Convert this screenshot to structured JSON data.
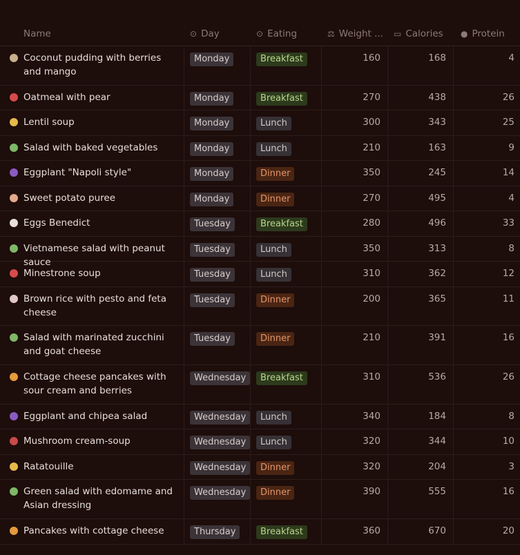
{
  "columns": {
    "name": "Name",
    "day": "Day",
    "eating": "Eating",
    "weight": "Weight ...",
    "calories": "Calories",
    "protein": "Protein"
  },
  "rows": [
    {
      "emoji": "🥥",
      "emoji_color": "#c9b08c",
      "name": "Coconut pudding with berries and mango",
      "day": "Monday",
      "eating": "Breakfast",
      "weight": "160",
      "calories": "168",
      "protein": "4",
      "h": 56
    },
    {
      "emoji": "🍐",
      "emoji_color": "#d84a4a",
      "name": "Oatmeal with pear",
      "day": "Monday",
      "eating": "Breakfast",
      "weight": "270",
      "calories": "438",
      "protein": "26",
      "h": 35
    },
    {
      "emoji": "🥣",
      "emoji_color": "#e7b94b",
      "name": "Lentil soup",
      "day": "Monday",
      "eating": "Lunch",
      "weight": "300",
      "calories": "343",
      "protein": "25",
      "h": 36
    },
    {
      "emoji": "🥗",
      "emoji_color": "#7fb866",
      "name": " Salad with baked vegetables",
      "day": "Monday",
      "eating": "Lunch",
      "weight": "210",
      "calories": "163",
      "protein": "9",
      "h": 35
    },
    {
      "emoji": "🍆",
      "emoji_color": "#8a5ac2",
      "name": "Eggplant \"Napoli style\"",
      "day": "Monday",
      "eating": "Dinner",
      "weight": "350",
      "calories": "245",
      "protein": "14",
      "h": 36
    },
    {
      "emoji": "🍠",
      "emoji_color": "#e4a88a",
      "name": "Sweet potato puree",
      "day": "Monday",
      "eating": "Dinner",
      "weight": "270",
      "calories": "495",
      "protein": "4",
      "h": 35
    },
    {
      "emoji": "🥚",
      "emoji_color": "#e8e0d8",
      "name": "Eggs Benedict",
      "day": "Tuesday",
      "eating": "Breakfast",
      "weight": "280",
      "calories": "496",
      "protein": "33",
      "h": 36
    },
    {
      "emoji": "🥗",
      "emoji_color": "#7fb866",
      "name": "Vietnamese salad with peanut sauce",
      "day": "Tuesday",
      "eating": "Lunch",
      "weight": "350",
      "calories": "313",
      "protein": "8",
      "h": 35
    },
    {
      "emoji": "🍲",
      "emoji_color": "#d84a4a",
      "name": "Minestrone soup",
      "day": "Tuesday",
      "eating": "Lunch",
      "weight": "310",
      "calories": "362",
      "protein": "12",
      "h": 36
    },
    {
      "emoji": "🍚",
      "emoji_color": "#e0c8c8",
      "name": "Brown rice with pesto and feta cheese",
      "day": "Tuesday",
      "eating": "Dinner",
      "weight": "200",
      "calories": "365",
      "protein": "11",
      "h": 55
    },
    {
      "emoji": "🥗",
      "emoji_color": "#7fb866",
      "name": "Salad with marinated zucchini and goat cheese",
      "day": "Tuesday",
      "eating": "Dinner",
      "weight": "210",
      "calories": "391",
      "protein": "16",
      "h": 56
    },
    {
      "emoji": "🥞",
      "emoji_color": "#e59a3c",
      "name": "Cottage cheese pancakes with sour cream and berries",
      "day": "Wednesday",
      "eating": "Breakfast",
      "weight": "310",
      "calories": "536",
      "protein": "26",
      "h": 56
    },
    {
      "emoji": "🍆",
      "emoji_color": "#8a5ac2",
      "name": "Eggplant and chipea salad",
      "day": "Wednesday",
      "eating": "Lunch",
      "weight": "340",
      "calories": "184",
      "protein": "8",
      "h": 35
    },
    {
      "emoji": "🍄",
      "emoji_color": "#c84a4a",
      "name": "Mushroom cream-soup",
      "day": "Wednesday",
      "eating": "Lunch",
      "weight": "320",
      "calories": "344",
      "protein": "10",
      "h": 36
    },
    {
      "emoji": "🍛",
      "emoji_color": "#e7b94b",
      "name": "Ratatouille",
      "day": "Wednesday",
      "eating": "Dinner",
      "weight": "320",
      "calories": "204",
      "protein": "3",
      "h": 35
    },
    {
      "emoji": "🥗",
      "emoji_color": "#7fb866",
      "name": "Green salad with edomame and Asian dressing",
      "day": "Wednesday",
      "eating": "Dinner",
      "weight": "390",
      "calories": "555",
      "protein": "16",
      "h": 56
    },
    {
      "emoji": "🥞",
      "emoji_color": "#e59a3c",
      "name": "Pancakes with cottage cheese",
      "day": "Thursday",
      "eating": "Breakfast",
      "weight": "360",
      "calories": "670",
      "protein": "20",
      "h": 36
    }
  ]
}
